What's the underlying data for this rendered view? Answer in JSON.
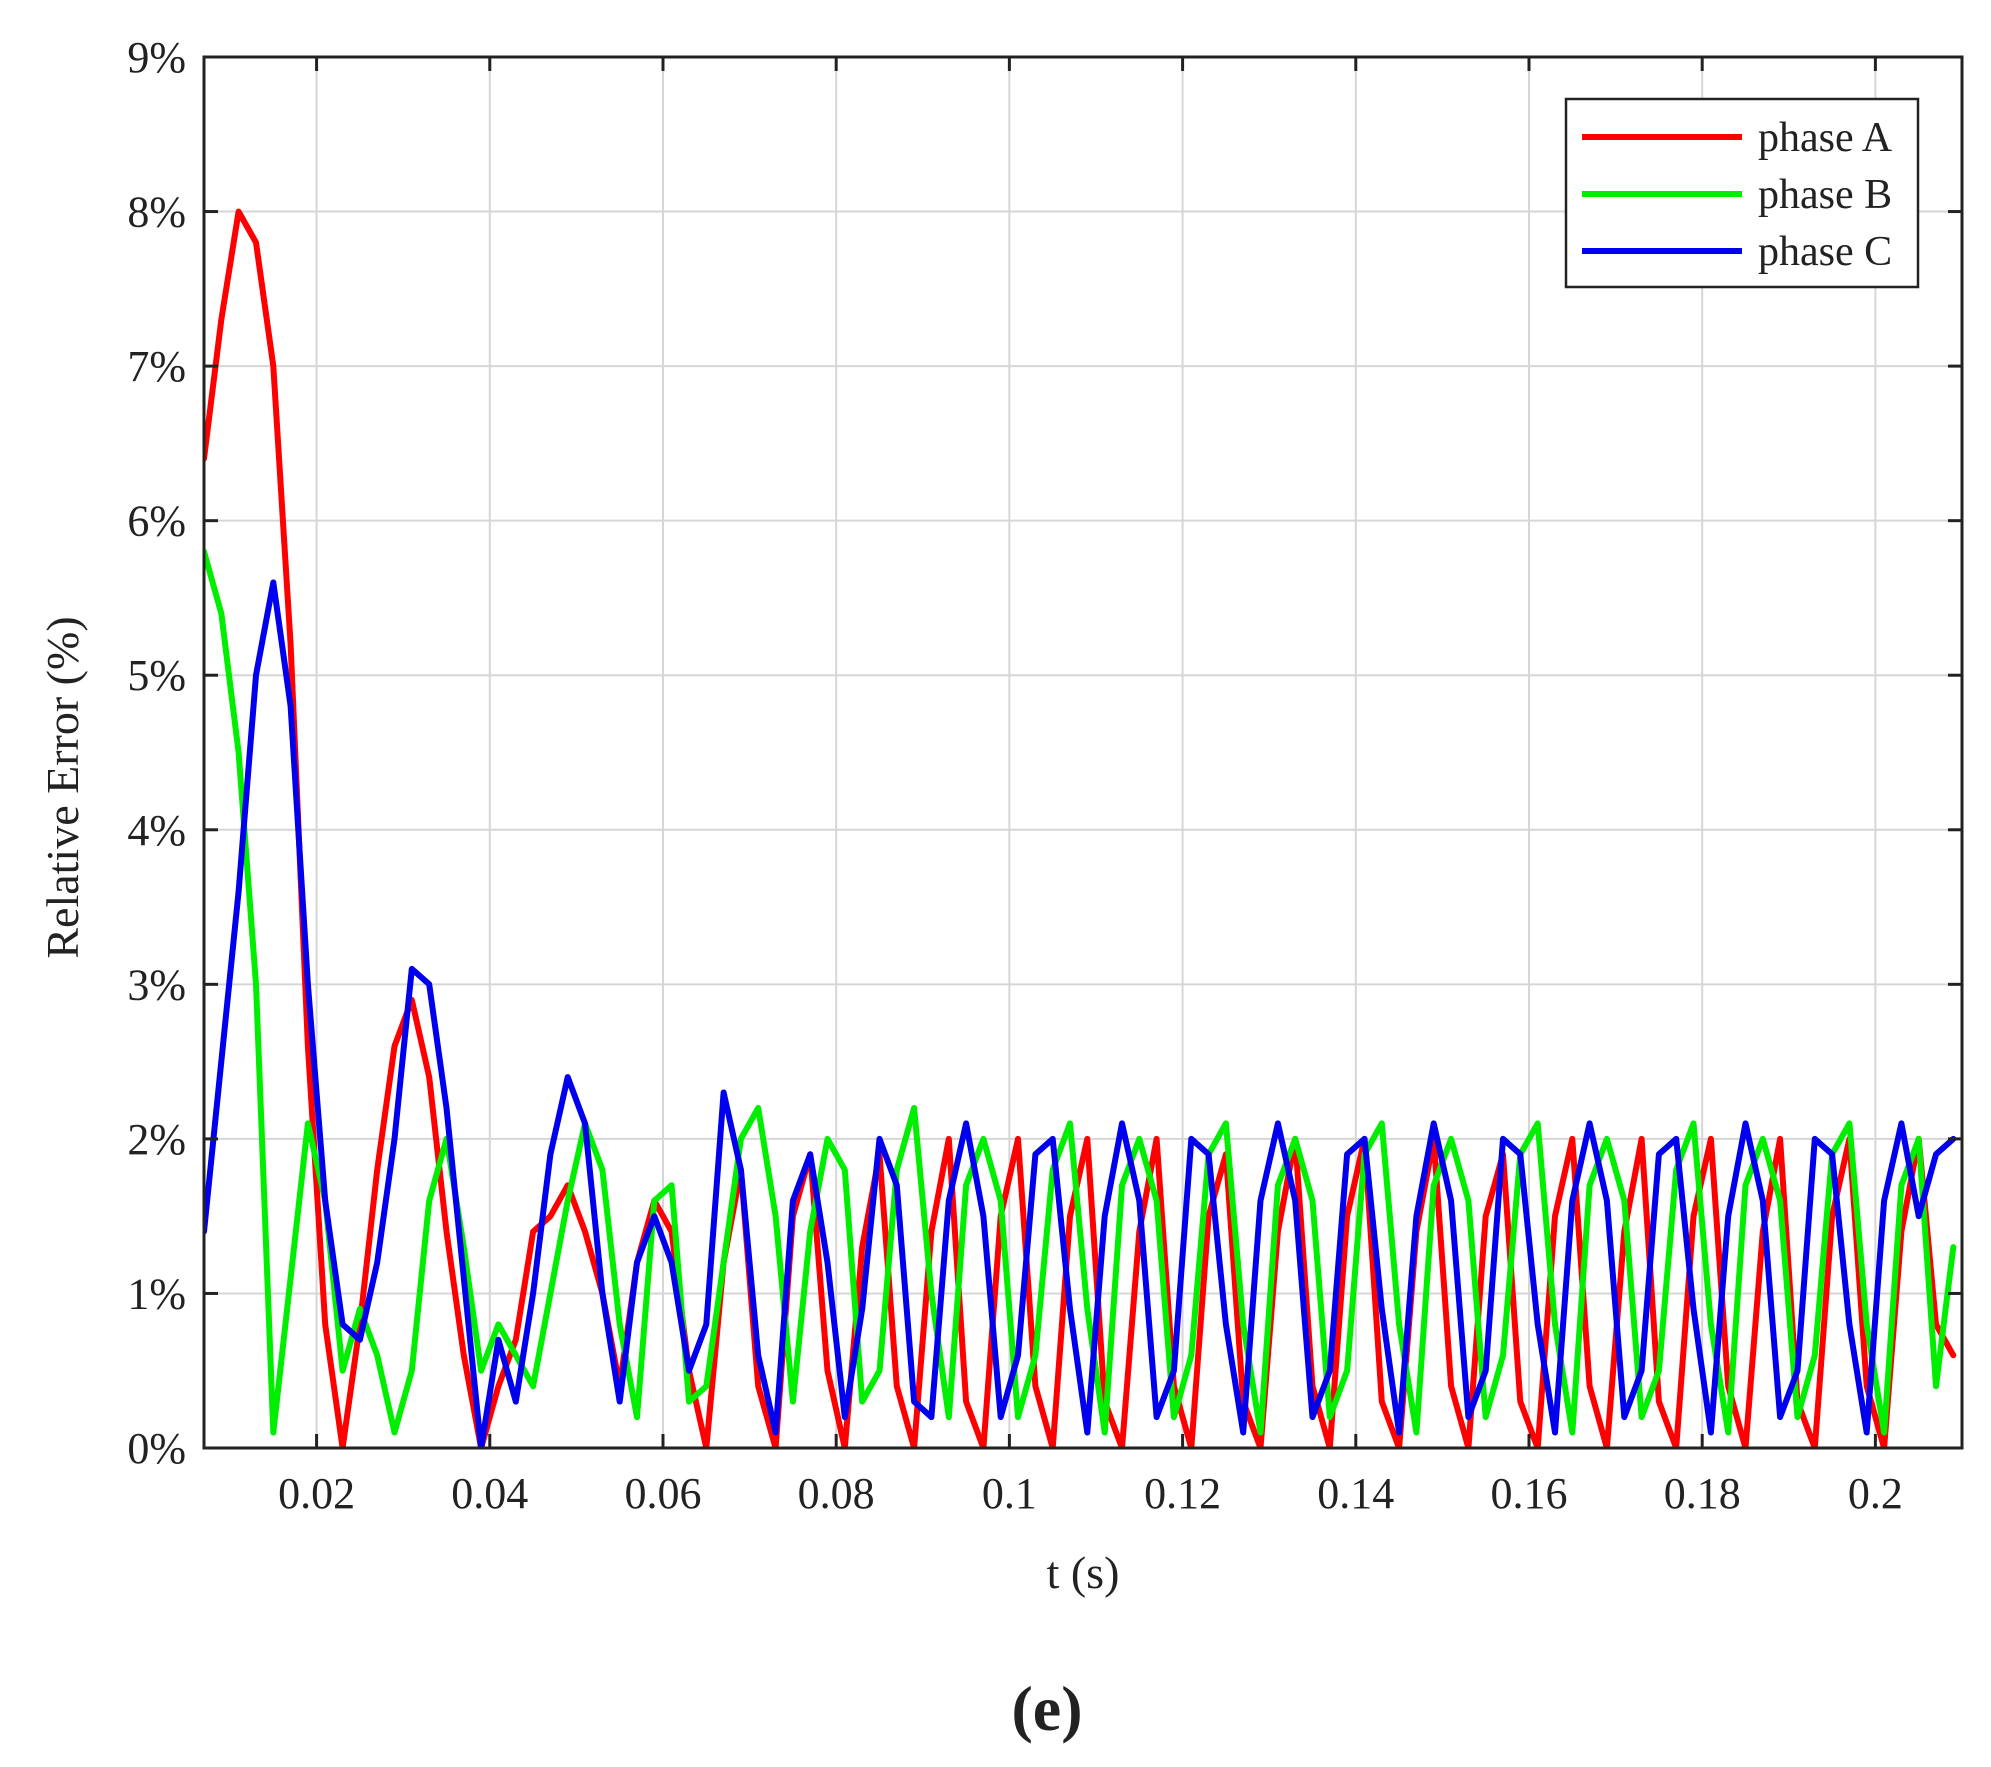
{
  "chart_data": {
    "type": "line",
    "xlabel": "t (s)",
    "ylabel": "Relative Error (%)",
    "xlim": [
      0.007,
      0.21
    ],
    "ylim": [
      0,
      9
    ],
    "x_ticks": [
      0.02,
      0.04,
      0.06,
      0.08,
      0.1,
      0.12,
      0.14,
      0.16,
      0.18,
      0.2
    ],
    "x_tick_labels": [
      "0.02",
      "0.04",
      "0.06",
      "0.08",
      "0.1",
      "0.12",
      "0.14",
      "0.16",
      "0.18",
      "0.2"
    ],
    "y_ticks": [
      0,
      1,
      2,
      3,
      4,
      5,
      6,
      7,
      8,
      9
    ],
    "y_tick_labels": [
      "0%",
      "1%",
      "2%",
      "3%",
      "4%",
      "5%",
      "6%",
      "7%",
      "8%",
      "9%"
    ],
    "grid": true,
    "legend_position": "top-right",
    "series": [
      {
        "name": "phase A",
        "color": "#ff0000",
        "x": [
          0.007,
          0.009,
          0.011,
          0.013,
          0.015,
          0.017,
          0.019,
          0.021,
          0.023,
          0.025,
          0.027,
          0.029,
          0.031,
          0.033,
          0.035,
          0.037,
          0.039,
          0.041,
          0.043,
          0.045,
          0.047,
          0.049,
          0.051,
          0.053,
          0.055,
          0.057,
          0.059,
          0.061,
          0.063,
          0.065,
          0.067,
          0.069,
          0.071,
          0.073,
          0.075,
          0.077,
          0.079,
          0.081,
          0.083,
          0.085,
          0.087,
          0.089,
          0.091,
          0.093,
          0.095,
          0.097,
          0.099,
          0.101,
          0.103,
          0.105,
          0.107,
          0.109,
          0.111,
          0.113,
          0.115,
          0.117,
          0.119,
          0.121,
          0.123,
          0.125,
          0.127,
          0.129,
          0.131,
          0.133,
          0.135,
          0.137,
          0.139,
          0.141,
          0.143,
          0.145,
          0.147,
          0.149,
          0.151,
          0.153,
          0.155,
          0.157,
          0.159,
          0.161,
          0.163,
          0.165,
          0.167,
          0.169,
          0.171,
          0.173,
          0.175,
          0.177,
          0.179,
          0.181,
          0.183,
          0.185,
          0.187,
          0.189,
          0.191,
          0.193,
          0.195,
          0.197,
          0.199,
          0.201,
          0.203,
          0.205,
          0.207,
          0.209
        ],
        "values": [
          6.4,
          7.3,
          8.0,
          7.8,
          7.0,
          5.2,
          2.6,
          0.8,
          0.0,
          0.8,
          1.8,
          2.6,
          2.9,
          2.4,
          1.4,
          0.6,
          0.0,
          0.4,
          0.7,
          1.4,
          1.5,
          1.7,
          1.4,
          1.0,
          0.4,
          1.2,
          1.6,
          1.4,
          0.5,
          0.0,
          1.2,
          1.8,
          0.4,
          0.0,
          1.5,
          1.9,
          0.5,
          0.0,
          1.3,
          1.9,
          0.4,
          0.0,
          1.4,
          2.0,
          0.3,
          0.0,
          1.5,
          2.0,
          0.4,
          0.0,
          1.5,
          2.0,
          0.3,
          0.0,
          1.4,
          2.0,
          0.4,
          0.0,
          1.5,
          1.9,
          0.3,
          0.0,
          1.4,
          2.0,
          0.4,
          0.0,
          1.5,
          2.0,
          0.3,
          0.0,
          1.4,
          2.0,
          0.4,
          0.0,
          1.5,
          1.9,
          0.3,
          0.0,
          1.5,
          2.0,
          0.4,
          0.0,
          1.4,
          2.0,
          0.3,
          0.0,
          1.5,
          2.0,
          0.4,
          0.0,
          1.4,
          2.0,
          0.3,
          0.0,
          1.5,
          2.0,
          0.4,
          0.0,
          1.4,
          2.0,
          0.8,
          0.6
        ]
      },
      {
        "name": "phase B",
        "color": "#00ee00",
        "x": [
          0.007,
          0.009,
          0.011,
          0.013,
          0.015,
          0.017,
          0.019,
          0.021,
          0.023,
          0.025,
          0.027,
          0.029,
          0.031,
          0.033,
          0.035,
          0.037,
          0.039,
          0.041,
          0.043,
          0.045,
          0.047,
          0.049,
          0.051,
          0.053,
          0.055,
          0.057,
          0.059,
          0.061,
          0.063,
          0.065,
          0.067,
          0.069,
          0.071,
          0.073,
          0.075,
          0.077,
          0.079,
          0.081,
          0.083,
          0.085,
          0.087,
          0.089,
          0.091,
          0.093,
          0.095,
          0.097,
          0.099,
          0.101,
          0.103,
          0.105,
          0.107,
          0.109,
          0.111,
          0.113,
          0.115,
          0.117,
          0.119,
          0.121,
          0.123,
          0.125,
          0.127,
          0.129,
          0.131,
          0.133,
          0.135,
          0.137,
          0.139,
          0.141,
          0.143,
          0.145,
          0.147,
          0.149,
          0.151,
          0.153,
          0.155,
          0.157,
          0.159,
          0.161,
          0.163,
          0.165,
          0.167,
          0.169,
          0.171,
          0.173,
          0.175,
          0.177,
          0.179,
          0.181,
          0.183,
          0.185,
          0.187,
          0.189,
          0.191,
          0.193,
          0.195,
          0.197,
          0.199,
          0.201,
          0.203,
          0.205,
          0.207,
          0.209
        ],
        "values": [
          5.8,
          5.4,
          4.5,
          3.0,
          0.1,
          1.1,
          2.1,
          1.6,
          0.5,
          0.9,
          0.6,
          0.1,
          0.5,
          1.6,
          2.0,
          1.3,
          0.5,
          0.8,
          0.6,
          0.4,
          1.0,
          1.6,
          2.1,
          1.8,
          0.8,
          0.2,
          1.6,
          1.7,
          0.3,
          0.4,
          1.2,
          2.0,
          2.2,
          1.5,
          0.3,
          1.4,
          2.0,
          1.8,
          0.3,
          0.5,
          1.8,
          2.2,
          1.0,
          0.2,
          1.7,
          2.0,
          1.6,
          0.2,
          0.6,
          1.8,
          2.1,
          0.9,
          0.1,
          1.7,
          2.0,
          1.6,
          0.2,
          0.6,
          1.9,
          2.1,
          0.8,
          0.1,
          1.7,
          2.0,
          1.6,
          0.2,
          0.5,
          1.9,
          2.1,
          0.8,
          0.1,
          1.7,
          2.0,
          1.6,
          0.2,
          0.6,
          1.9,
          2.1,
          0.8,
          0.1,
          1.7,
          2.0,
          1.6,
          0.2,
          0.5,
          1.8,
          2.1,
          0.8,
          0.1,
          1.7,
          2.0,
          1.6,
          0.2,
          0.6,
          1.9,
          2.1,
          0.8,
          0.1,
          1.7,
          2.0,
          0.4,
          1.3
        ]
      },
      {
        "name": "phase C",
        "color": "#0000ee",
        "x": [
          0.007,
          0.009,
          0.011,
          0.013,
          0.015,
          0.017,
          0.019,
          0.021,
          0.023,
          0.025,
          0.027,
          0.029,
          0.031,
          0.033,
          0.035,
          0.037,
          0.039,
          0.041,
          0.043,
          0.045,
          0.047,
          0.049,
          0.051,
          0.053,
          0.055,
          0.057,
          0.059,
          0.061,
          0.063,
          0.065,
          0.067,
          0.069,
          0.071,
          0.073,
          0.075,
          0.077,
          0.079,
          0.081,
          0.083,
          0.085,
          0.087,
          0.089,
          0.091,
          0.093,
          0.095,
          0.097,
          0.099,
          0.101,
          0.103,
          0.105,
          0.107,
          0.109,
          0.111,
          0.113,
          0.115,
          0.117,
          0.119,
          0.121,
          0.123,
          0.125,
          0.127,
          0.129,
          0.131,
          0.133,
          0.135,
          0.137,
          0.139,
          0.141,
          0.143,
          0.145,
          0.147,
          0.149,
          0.151,
          0.153,
          0.155,
          0.157,
          0.159,
          0.161,
          0.163,
          0.165,
          0.167,
          0.169,
          0.171,
          0.173,
          0.175,
          0.177,
          0.179,
          0.181,
          0.183,
          0.185,
          0.187,
          0.189,
          0.191,
          0.193,
          0.195,
          0.197,
          0.199,
          0.201,
          0.203,
          0.205,
          0.207,
          0.209
        ],
        "values": [
          1.4,
          2.5,
          3.6,
          5.0,
          5.6,
          4.8,
          3.0,
          1.6,
          0.8,
          0.7,
          1.2,
          2.0,
          3.1,
          3.0,
          2.2,
          1.1,
          0.0,
          0.7,
          0.3,
          1.0,
          1.9,
          2.4,
          2.1,
          1.0,
          0.3,
          1.2,
          1.5,
          1.2,
          0.5,
          0.8,
          2.3,
          1.8,
          0.6,
          0.1,
          1.6,
          1.9,
          1.2,
          0.2,
          0.9,
          2.0,
          1.7,
          0.3,
          0.2,
          1.6,
          2.1,
          1.5,
          0.2,
          0.6,
          1.9,
          2.0,
          0.9,
          0.1,
          1.5,
          2.1,
          1.6,
          0.2,
          0.5,
          2.0,
          1.9,
          0.8,
          0.1,
          1.6,
          2.1,
          1.6,
          0.2,
          0.5,
          1.9,
          2.0,
          0.9,
          0.1,
          1.5,
          2.1,
          1.6,
          0.2,
          0.5,
          2.0,
          1.9,
          0.8,
          0.1,
          1.6,
          2.1,
          1.6,
          0.2,
          0.5,
          1.9,
          2.0,
          0.9,
          0.1,
          1.5,
          2.1,
          1.6,
          0.2,
          0.5,
          2.0,
          1.9,
          0.8,
          0.1,
          1.6,
          2.1,
          1.5,
          1.9,
          2.0
        ]
      }
    ]
  },
  "caption": "(e)"
}
